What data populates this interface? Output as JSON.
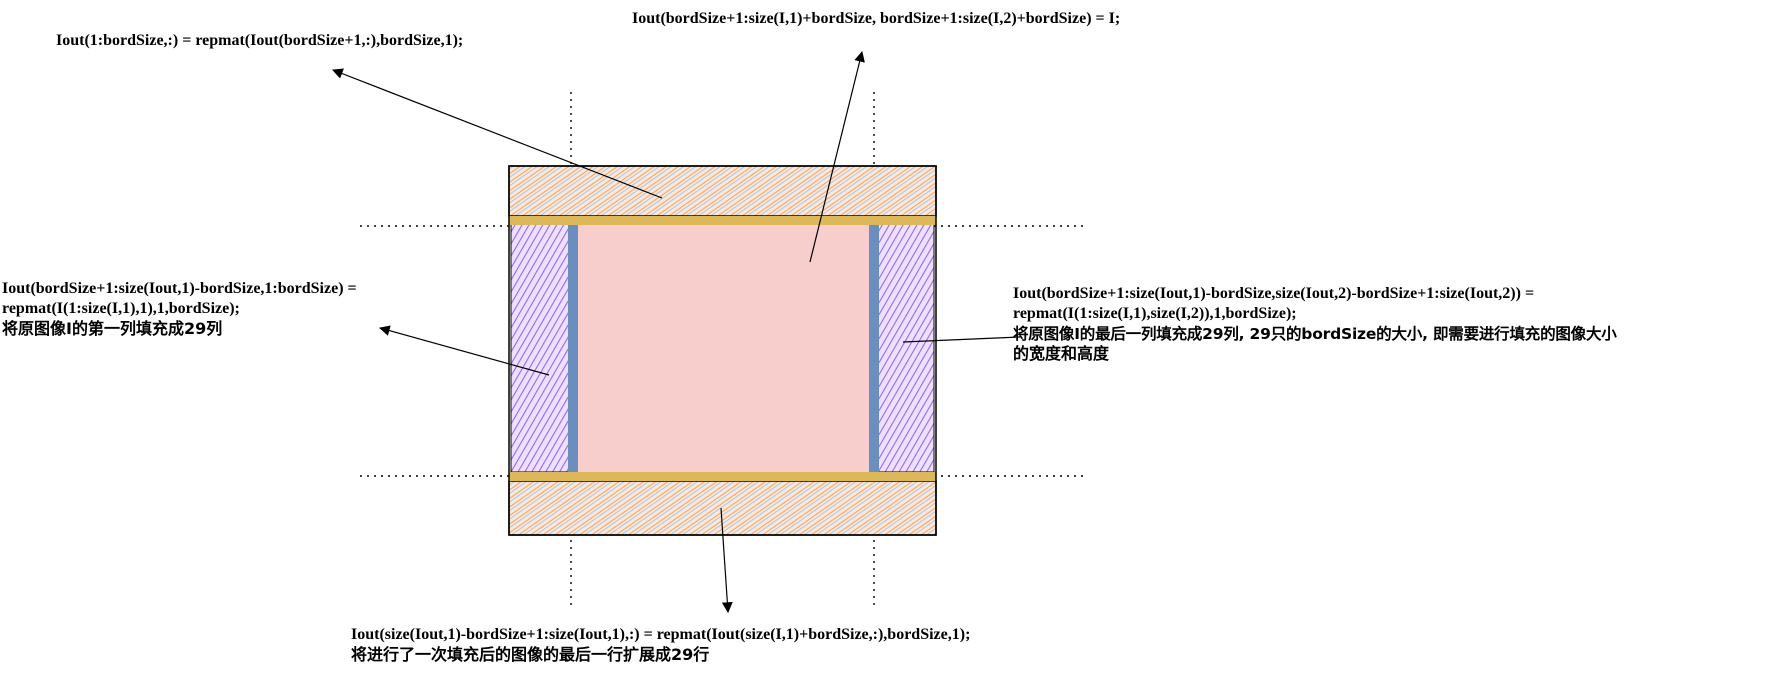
{
  "diagram": {
    "annotations": {
      "top": "Iout(1:bordSize,:) = repmat(Iout(bordSize+1,:),bordSize,1);",
      "center": "Iout(bordSize+1:size(I,1)+bordSize, bordSize+1:size(I,2)+bordSize) = I;",
      "left": {
        "line1": "Iout(bordSize+1:size(Iout,1)-bordSize,1:bordSize) =",
        "line2": "repmat(I(1:size(I,1),1),1,bordSize);",
        "line3": "将原图像I的第一列填充成29列"
      },
      "right": {
        "line1": "Iout(bordSize+1:size(Iout,1)-bordSize,size(Iout,2)-bordSize+1:size(Iout,2)) =",
        "line2": "repmat(I(1:size(I,1),size(I,2)),1,bordSize);",
        "line3": "将原图像I的最后一列填充成29列, 29只的bordSize的大小, 即需要进行填充的图像大小",
        "line4": "的宽度和高度"
      },
      "bottom": {
        "line1": "Iout(size(Iout,1)-bordSize+1:size(Iout,1),:) = repmat(Iout(size(I,1)+bordSize,:),bordSize,1);",
        "line2": "将进行了一次填充后的图像的最后一行扩展成29行"
      }
    },
    "colors": {
      "image_fill": "#f8cecc",
      "row_band": "#dcb85a",
      "col_band": "#6c8ebf",
      "top_bottom_hatch": "#f0a868",
      "side_hatch": "#9a66ee",
      "outline": "#000000"
    }
  }
}
